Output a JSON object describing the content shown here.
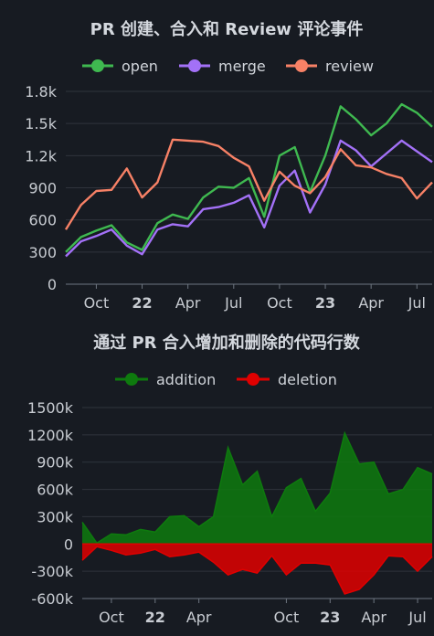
{
  "chart_data": [
    {
      "type": "line",
      "title": "PR 创建、合入和 Review 评论事件",
      "legend_position": "top-center",
      "ylim": [
        0,
        1800
      ],
      "y_ticks": [
        0,
        300,
        600,
        900,
        1200,
        1500,
        1800
      ],
      "y_tick_labels": [
        "0",
        "300",
        "600",
        "900",
        "1.2k",
        "1.5k",
        "1.8k"
      ],
      "x_start": "2021-08",
      "x_ticks": [
        {
          "label": "Oct",
          "month": "2021-10",
          "bold": false
        },
        {
          "label": "22",
          "month": "2022-01",
          "bold": true
        },
        {
          "label": "Apr",
          "month": "2022-04",
          "bold": false
        },
        {
          "label": "Jul",
          "month": "2022-07",
          "bold": false
        },
        {
          "label": "Oct",
          "month": "2022-10",
          "bold": false
        },
        {
          "label": "23",
          "month": "2023-01",
          "bold": true
        },
        {
          "label": "Apr",
          "month": "2023-04",
          "bold": false
        },
        {
          "label": "Jul",
          "month": "2023-07",
          "bold": false
        }
      ],
      "grid": true,
      "series": [
        {
          "name": "open",
          "color": "#3fb950",
          "values": [
            300,
            440,
            500,
            550,
            390,
            320,
            570,
            650,
            610,
            810,
            910,
            900,
            990,
            630,
            1200,
            1280,
            860,
            1200,
            1660,
            1540,
            1390,
            1500,
            1680,
            1600,
            1470
          ]
        },
        {
          "name": "merge",
          "color": "#a371f7",
          "values": [
            260,
            400,
            450,
            510,
            360,
            280,
            510,
            560,
            540,
            700,
            720,
            760,
            830,
            530,
            920,
            1060,
            670,
            930,
            1340,
            1250,
            1100,
            1220,
            1340,
            1240,
            1140
          ]
        },
        {
          "name": "review",
          "color": "#f78166",
          "values": [
            510,
            740,
            870,
            880,
            1080,
            810,
            950,
            1350,
            1340,
            1330,
            1290,
            1180,
            1100,
            780,
            1050,
            920,
            850,
            1000,
            1260,
            1110,
            1090,
            1030,
            990,
            800,
            950
          ]
        }
      ]
    },
    {
      "type": "area",
      "title": "通过 PR 合入增加和删除的代码行数",
      "legend_position": "top-center",
      "ylim": [
        -600000,
        1500000
      ],
      "y_ticks": [
        -600000,
        -300000,
        0,
        300000,
        600000,
        900000,
        1200000,
        1500000
      ],
      "y_tick_labels": [
        "-600k",
        "-300k",
        "0",
        "300k",
        "600k",
        "900k",
        "1200k",
        "1500k"
      ],
      "x_start": "2021-08",
      "x_ticks": [
        {
          "label": "Oct",
          "month": "2021-10",
          "bold": false
        },
        {
          "label": "22",
          "month": "2022-01",
          "bold": true
        },
        {
          "label": "Apr",
          "month": "2022-04",
          "bold": false
        },
        {
          "label": "Oct",
          "month": "2022-10",
          "bold": false
        },
        {
          "label": "23",
          "month": "2023-01",
          "bold": true
        },
        {
          "label": "Apr",
          "month": "2023-04",
          "bold": false
        },
        {
          "label": "Jul",
          "month": "2023-07",
          "bold": false
        }
      ],
      "grid": true,
      "series": [
        {
          "name": "addition",
          "color": "#0e7a0e",
          "values": [
            240000,
            10000,
            110000,
            100000,
            160000,
            130000,
            300000,
            310000,
            190000,
            300000,
            1060000,
            650000,
            800000,
            300000,
            620000,
            720000,
            360000,
            560000,
            1220000,
            880000,
            900000,
            550000,
            600000,
            840000,
            770000
          ]
        },
        {
          "name": "deletion",
          "color": "#e00000",
          "values": [
            -180000,
            -30000,
            -70000,
            -120000,
            -100000,
            -60000,
            -140000,
            -120000,
            -90000,
            -200000,
            -340000,
            -280000,
            -320000,
            -130000,
            -340000,
            -210000,
            -210000,
            -230000,
            -550000,
            -500000,
            -340000,
            -130000,
            -140000,
            -300000,
            -140000
          ]
        }
      ]
    }
  ]
}
